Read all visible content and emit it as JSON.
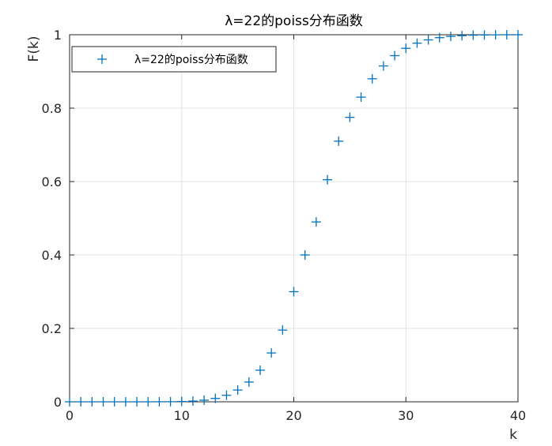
{
  "chart_data": {
    "type": "scatter",
    "title": "λ=22的poiss分布函数",
    "xlabel": "k",
    "ylabel": "F(k)",
    "xlim": [
      0,
      40
    ],
    "ylim": [
      0,
      1
    ],
    "xticks": [
      "0",
      "10",
      "20",
      "30",
      "40"
    ],
    "yticks": [
      "0",
      "0.2",
      "0.4",
      "0.6",
      "0.8",
      "1"
    ],
    "grid": true,
    "legend_position": "top-left",
    "marker": "+",
    "series": [
      {
        "name": "λ=22的poiss分布函数",
        "color": "#0072BD",
        "x": [
          0,
          1,
          2,
          3,
          4,
          5,
          6,
          7,
          8,
          9,
          10,
          11,
          12,
          13,
          14,
          15,
          16,
          17,
          18,
          19,
          20,
          21,
          22,
          23,
          24,
          25,
          26,
          27,
          28,
          29,
          30,
          31,
          32,
          33,
          34,
          35,
          36,
          37,
          38,
          39,
          40
        ],
        "y": [
          0.0,
          0.0,
          0.0,
          0.0,
          0.0,
          0.0,
          0.0,
          0.0,
          0.0001,
          0.0003,
          0.0008,
          0.002,
          0.0044,
          0.0092,
          0.0178,
          0.032,
          0.0539,
          0.0861,
          0.1331,
          0.1954,
          0.3,
          0.4,
          0.49,
          0.605,
          0.71,
          0.775,
          0.83,
          0.88,
          0.915,
          0.943,
          0.963,
          0.977,
          0.986,
          0.992,
          0.9955,
          0.9975,
          0.9987,
          0.9993,
          0.9997,
          0.9999,
          1.0
        ]
      }
    ]
  }
}
